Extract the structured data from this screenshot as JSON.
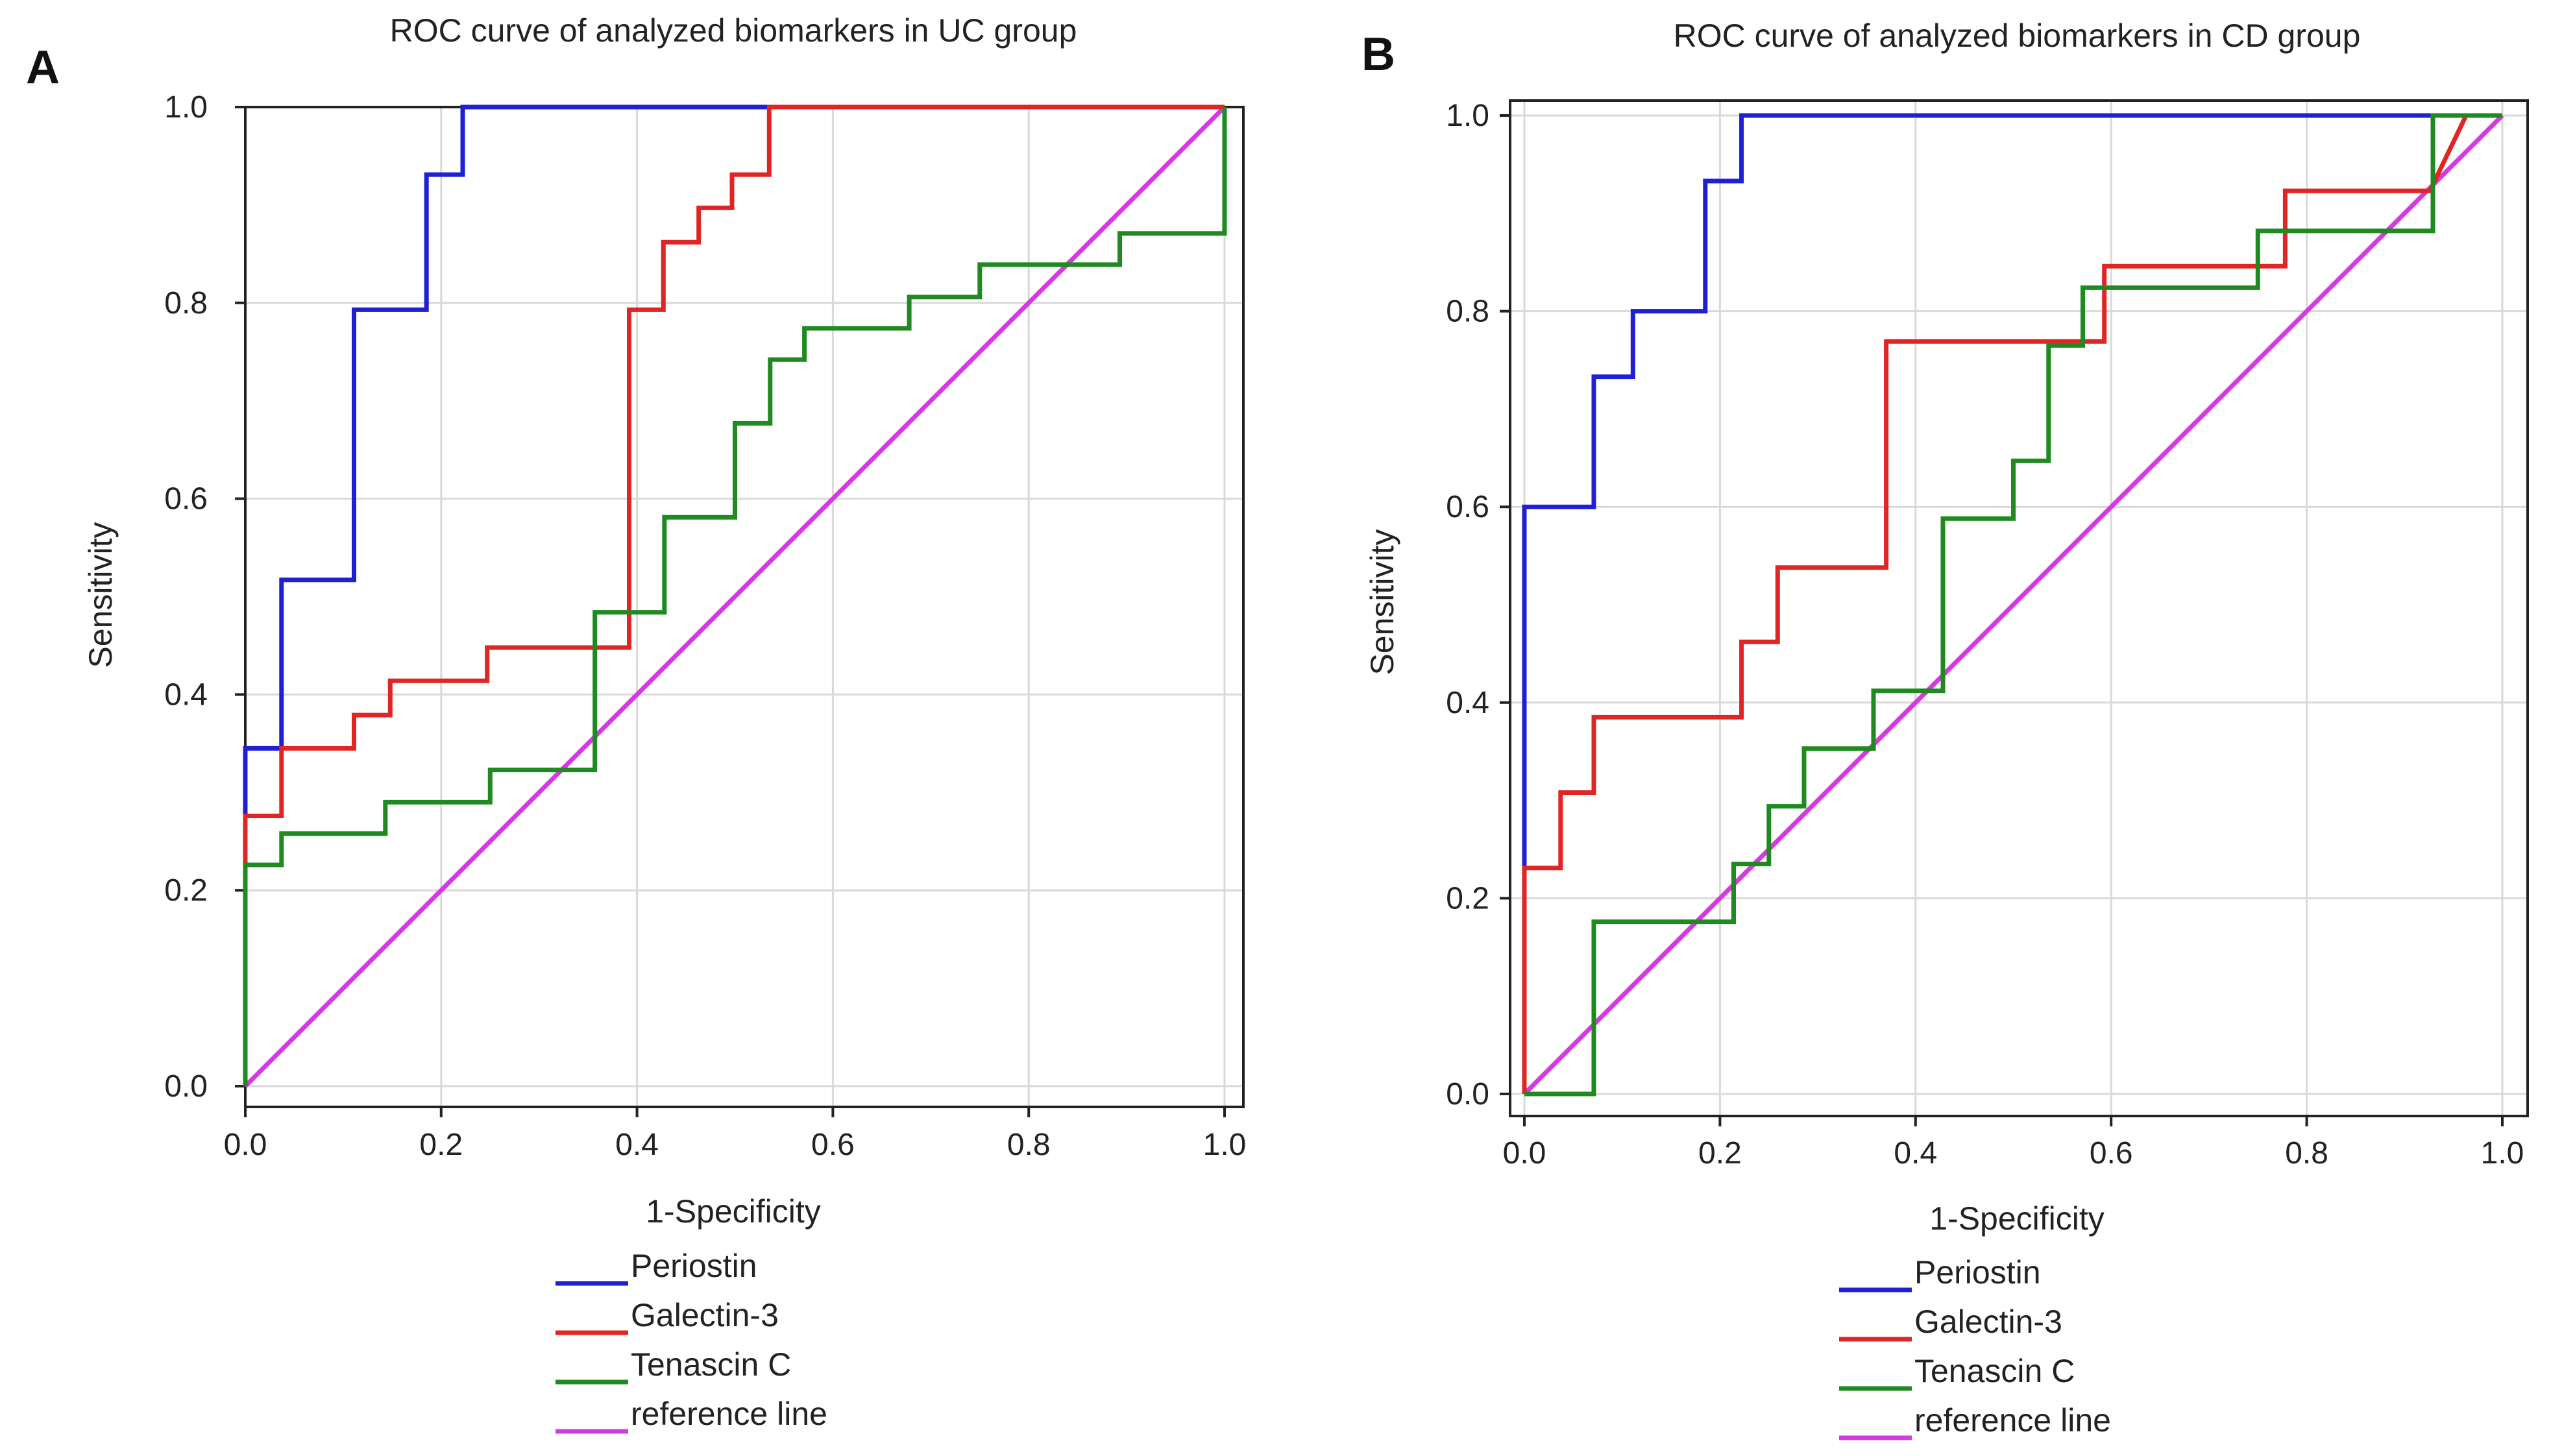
{
  "chart_data": [
    {
      "type": "line",
      "panel_label": "A",
      "title": "ROC curve of analyzed biomarkers in UC group",
      "xlabel": "1-Specificity",
      "ylabel": "Sensitivity",
      "xlim": [
        0,
        1
      ],
      "ylim": [
        0,
        1
      ],
      "grid": true,
      "xticks": [
        "0.0",
        "0.2",
        "0.4",
        "0.6",
        "0.8",
        "1.0"
      ],
      "yticks": [
        "0.0",
        "0.2",
        "0.4",
        "0.6",
        "0.8",
        "1.0"
      ],
      "legend_position": "bottom",
      "series": [
        {
          "name": "Periostin",
          "color": "#1f1fd6",
          "points": [
            [
              0,
              0
            ],
            [
              0,
              0.345
            ],
            [
              0.037,
              0.345
            ],
            [
              0.037,
              0.517
            ],
            [
              0.111,
              0.517
            ],
            [
              0.111,
              0.793
            ],
            [
              0.185,
              0.793
            ],
            [
              0.185,
              0.931
            ],
            [
              0.222,
              0.931
            ],
            [
              0.222,
              1
            ],
            [
              1,
              1
            ]
          ]
        },
        {
          "name": "Galectin-3",
          "color": "#e02525",
          "points": [
            [
              0,
              0
            ],
            [
              0,
              0.276
            ],
            [
              0.037,
              0.276
            ],
            [
              0.037,
              0.345
            ],
            [
              0.111,
              0.345
            ],
            [
              0.111,
              0.379
            ],
            [
              0.148,
              0.379
            ],
            [
              0.148,
              0.414
            ],
            [
              0.247,
              0.414
            ],
            [
              0.247,
              0.448
            ],
            [
              0.392,
              0.448
            ],
            [
              0.392,
              0.793
            ],
            [
              0.427,
              0.793
            ],
            [
              0.427,
              0.862
            ],
            [
              0.463,
              0.862
            ],
            [
              0.463,
              0.897
            ],
            [
              0.497,
              0.897
            ],
            [
              0.497,
              0.931
            ],
            [
              0.535,
              0.931
            ],
            [
              0.535,
              1
            ],
            [
              1,
              1
            ]
          ]
        },
        {
          "name": "Tenascin C",
          "color": "#1f8a1f",
          "points": [
            [
              0,
              0
            ],
            [
              0,
              0.226
            ],
            [
              0.037,
              0.226
            ],
            [
              0.037,
              0.258
            ],
            [
              0.143,
              0.258
            ],
            [
              0.143,
              0.29
            ],
            [
              0.25,
              0.29
            ],
            [
              0.25,
              0.323
            ],
            [
              0.357,
              0.323
            ],
            [
              0.357,
              0.484
            ],
            [
              0.428,
              0.484
            ],
            [
              0.428,
              0.581
            ],
            [
              0.5,
              0.581
            ],
            [
              0.5,
              0.677
            ],
            [
              0.536,
              0.677
            ],
            [
              0.536,
              0.742
            ],
            [
              0.571,
              0.742
            ],
            [
              0.571,
              0.774
            ],
            [
              0.678,
              0.774
            ],
            [
              0.678,
              0.806
            ],
            [
              0.75,
              0.806
            ],
            [
              0.75,
              0.839
            ],
            [
              0.893,
              0.839
            ],
            [
              0.893,
              0.871
            ],
            [
              1,
              0.871
            ],
            [
              1,
              1
            ]
          ]
        },
        {
          "name": "reference line",
          "color": "#d43ae0",
          "points": [
            [
              0,
              0
            ],
            [
              1,
              1
            ]
          ]
        }
      ]
    },
    {
      "type": "line",
      "panel_label": "B",
      "title": "ROC curve of analyzed biomarkers in CD group",
      "xlabel": "1-Specificity",
      "ylabel": "Sensitivity",
      "xlim": [
        0,
        1
      ],
      "ylim": [
        0,
        1
      ],
      "grid": true,
      "xticks": [
        "0.0",
        "0.2",
        "0.4",
        "0.6",
        "0.8",
        "1.0"
      ],
      "yticks": [
        "0.0",
        "0.2",
        "0.4",
        "0.6",
        "0.8",
        "1.0"
      ],
      "legend_position": "bottom",
      "series": [
        {
          "name": "Periostin",
          "color": "#1f1fd6",
          "points": [
            [
              0,
              0
            ],
            [
              0,
              0.6
            ],
            [
              0.071,
              0.6
            ],
            [
              0.071,
              0.733
            ],
            [
              0.111,
              0.733
            ],
            [
              0.111,
              0.8
            ],
            [
              0.185,
              0.8
            ],
            [
              0.185,
              0.933
            ],
            [
              0.222,
              0.933
            ],
            [
              0.222,
              1
            ],
            [
              1,
              1
            ]
          ]
        },
        {
          "name": "Galectin-3",
          "color": "#e02525",
          "points": [
            [
              0,
              0
            ],
            [
              0,
              0.231
            ],
            [
              0.037,
              0.231
            ],
            [
              0.037,
              0.308
            ],
            [
              0.071,
              0.308
            ],
            [
              0.071,
              0.385
            ],
            [
              0.222,
              0.385
            ],
            [
              0.222,
              0.462
            ],
            [
              0.259,
              0.462
            ],
            [
              0.259,
              0.538
            ],
            [
              0.37,
              0.538
            ],
            [
              0.37,
              0.769
            ],
            [
              0.593,
              0.769
            ],
            [
              0.593,
              0.846
            ],
            [
              0.778,
              0.846
            ],
            [
              0.778,
              0.923
            ],
            [
              0.926,
              0.923
            ],
            [
              0.963,
              1
            ],
            [
              1,
              1
            ]
          ]
        },
        {
          "name": "Tenascin C",
          "color": "#1f8a1f",
          "points": [
            [
              0,
              0
            ],
            [
              0.071,
              0
            ],
            [
              0.071,
              0.176
            ],
            [
              0.214,
              0.176
            ],
            [
              0.214,
              0.235
            ],
            [
              0.25,
              0.235
            ],
            [
              0.25,
              0.294
            ],
            [
              0.286,
              0.294
            ],
            [
              0.286,
              0.353
            ],
            [
              0.357,
              0.353
            ],
            [
              0.357,
              0.412
            ],
            [
              0.428,
              0.412
            ],
            [
              0.428,
              0.588
            ],
            [
              0.5,
              0.588
            ],
            [
              0.5,
              0.647
            ],
            [
              0.536,
              0.647
            ],
            [
              0.536,
              0.765
            ],
            [
              0.571,
              0.765
            ],
            [
              0.571,
              0.824
            ],
            [
              0.75,
              0.824
            ],
            [
              0.75,
              0.882
            ],
            [
              0.929,
              0.882
            ],
            [
              0.929,
              1
            ],
            [
              1,
              1
            ]
          ]
        },
        {
          "name": "reference line",
          "color": "#d43ae0",
          "points": [
            [
              0,
              0
            ],
            [
              1,
              1
            ]
          ]
        }
      ]
    }
  ]
}
